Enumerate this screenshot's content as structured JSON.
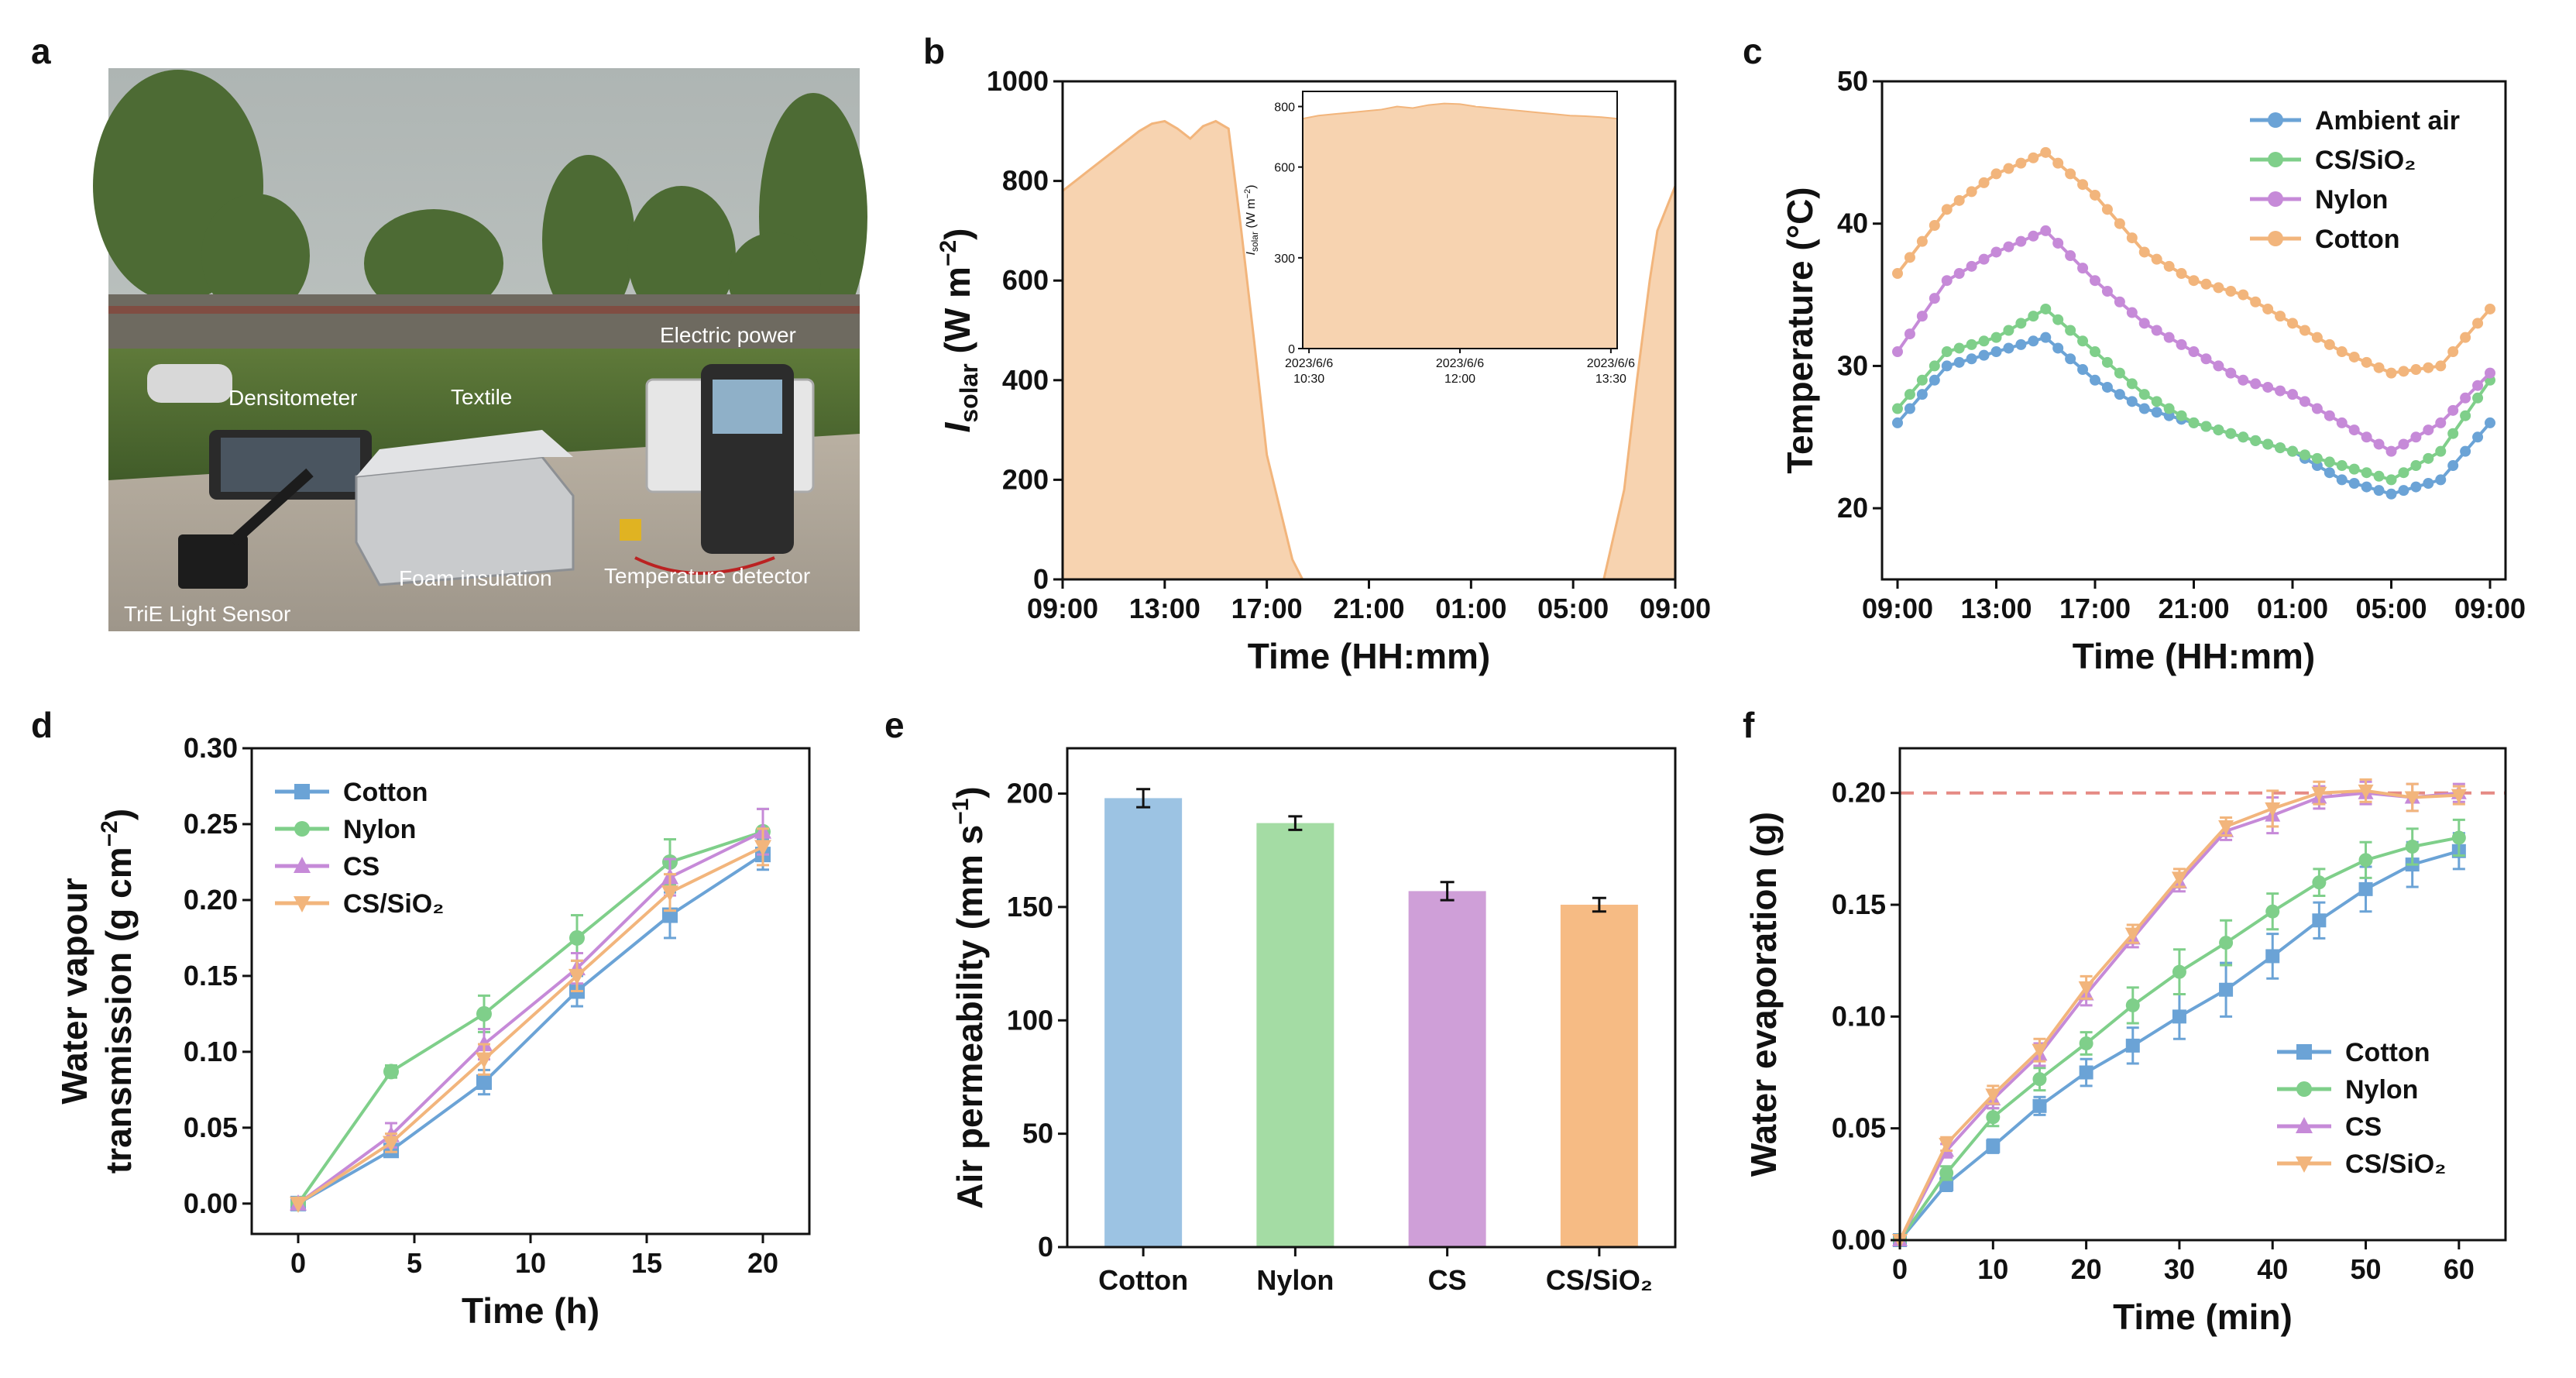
{
  "panels": {
    "a": "a",
    "b": "b",
    "c": "c",
    "d": "d",
    "e": "e",
    "f": "f"
  },
  "photo": {
    "labels": {
      "electric_power": "Electric power",
      "densitometer": "Densitometer",
      "textile": "Textile",
      "foam": "Foam insulation",
      "temp_detector": "Temperature detector",
      "light_sensor": "TriE Light Sensor"
    }
  },
  "colors": {
    "orange": "#f2b57c",
    "orange_fill": "#f7d3b0",
    "blue": "#6ba3d6",
    "green": "#7fcf8a",
    "purple": "#c68ad8",
    "red_dash": "#e58a84",
    "bar_cotton": "#9cc3e3",
    "bar_nylon": "#a4dca4",
    "bar_cs": "#cf9fd8",
    "bar_cssio2": "#f6bb84"
  },
  "chart_data": [
    {
      "id": "b",
      "type": "area",
      "title": "",
      "xlabel": "Time (HH:mm)",
      "ylabel_main": "I",
      "ylabel_sub": "solar",
      "ylabel_unit": " (W m",
      "ylabel_sup": "−2",
      "ylabel_close": ")",
      "ylim": [
        0,
        1000
      ],
      "yticks": [
        0,
        200,
        400,
        600,
        800,
        1000
      ],
      "xticks": [
        "09:00",
        "13:00",
        "17:00",
        "21:00",
        "01:00",
        "05:00",
        "09:00"
      ],
      "x": [
        0,
        1,
        2,
        3,
        3.5,
        4,
        4.5,
        5,
        5.5,
        6,
        6.5,
        7,
        7.5,
        8,
        9,
        9.4,
        10,
        12,
        16,
        20,
        21.2,
        22,
        22.5,
        23,
        23.3,
        24
      ],
      "y": [
        780,
        820,
        860,
        900,
        915,
        920,
        905,
        885,
        910,
        920,
        905,
        700,
        480,
        250,
        40,
        0,
        0,
        0,
        0,
        0,
        0,
        180,
        400,
        600,
        700,
        790
      ],
      "inset": {
        "yticks": [
          0,
          300,
          600,
          800
        ],
        "ylabel": "I",
        "ylabel_sub": "solar",
        "ylabel_unit": " (W m",
        "ylabel_sup": "−2",
        "ylabel_close": ")",
        "ylim": [
          0,
          850
        ],
        "xticks": [
          "2023/6/6 10:30",
          "2023/6/6 12:00",
          "2023/6/6 13:30"
        ],
        "x": [
          0,
          0.05,
          0.1,
          0.15,
          0.2,
          0.25,
          0.3,
          0.35,
          0.4,
          0.45,
          0.5,
          0.55,
          0.6,
          0.65,
          0.7,
          0.75,
          0.8,
          0.85,
          0.9,
          0.95,
          1.0
        ],
        "y": [
          760,
          770,
          775,
          780,
          785,
          790,
          800,
          795,
          805,
          810,
          808,
          800,
          795,
          790,
          785,
          780,
          775,
          770,
          768,
          765,
          760
        ]
      }
    },
    {
      "id": "c",
      "type": "line",
      "xlabel": "Time (HH:mm)",
      "ylabel": "Temperature (°C)",
      "ylim": [
        15,
        50
      ],
      "yticks": [
        20,
        30,
        40,
        50
      ],
      "xticks": [
        "09:00",
        "13:00",
        "17:00",
        "21:00",
        "01:00",
        "05:00",
        "09:00"
      ],
      "x": [
        0,
        2,
        4,
        6,
        8,
        10,
        12,
        14,
        16,
        18,
        20,
        22,
        24
      ],
      "series": [
        {
          "name": "Ambient air",
          "values": [
            26,
            30,
            31,
            32,
            29,
            27,
            26,
            25,
            24,
            22,
            21,
            22,
            26
          ]
        },
        {
          "name": "CS/SiO₂",
          "values": [
            27,
            31,
            32,
            34,
            31,
            28,
            26,
            25,
            24,
            23,
            22,
            24,
            29
          ]
        },
        {
          "name": "Nylon",
          "values": [
            31,
            36,
            38,
            39.5,
            36,
            33,
            31,
            29,
            28,
            26,
            24,
            26,
            29.5
          ]
        },
        {
          "name": "Cotton",
          "values": [
            36.5,
            41,
            43.5,
            45,
            42,
            38,
            36,
            35,
            33,
            31,
            29.5,
            30,
            34
          ]
        }
      ]
    },
    {
      "id": "d",
      "type": "line",
      "xlabel": "Time (h)",
      "ylabel_line1": "Water vapour",
      "ylabel_line2_a": "transmission (g cm",
      "ylabel_line2_sup": "−2",
      "ylabel_line2_b": ")",
      "ylim": [
        -0.02,
        0.3
      ],
      "yticks": [
        0.0,
        0.05,
        0.1,
        0.15,
        0.2,
        0.25,
        0.3
      ],
      "ytick_labels": [
        "0.00",
        "0.05",
        "0.10",
        "0.15",
        "0.20",
        "0.25",
        "0.30"
      ],
      "xlim": [
        -2,
        22
      ],
      "xticks": [
        0,
        5,
        10,
        15,
        20
      ],
      "x": [
        0,
        4,
        8,
        12,
        16,
        20
      ],
      "series": [
        {
          "name": "Cotton",
          "values": [
            0,
            0.035,
            0.08,
            0.14,
            0.19,
            0.23
          ],
          "err": [
            0,
            0.004,
            0.008,
            0.01,
            0.015,
            0.01
          ]
        },
        {
          "name": "Nylon",
          "values": [
            0,
            0.087,
            0.125,
            0.175,
            0.225,
            0.245
          ],
          "err": [
            0,
            0.004,
            0.012,
            0.015,
            0.015,
            0.015
          ]
        },
        {
          "name": "CS",
          "values": [
            0,
            0.045,
            0.105,
            0.155,
            0.215,
            0.245
          ],
          "err": [
            0,
            0.008,
            0.01,
            0.01,
            0.012,
            0.015
          ]
        },
        {
          "name": "CS/SiO₂",
          "values": [
            0,
            0.04,
            0.095,
            0.15,
            0.205,
            0.235
          ],
          "err": [
            0,
            0.006,
            0.01,
            0.01,
            0.012,
            0.012
          ]
        }
      ]
    },
    {
      "id": "e",
      "type": "bar",
      "xlabel": "",
      "ylabel_a": "Air permeability (mm s",
      "ylabel_sup": "−1",
      "ylabel_b": ")",
      "ylim": [
        0,
        220
      ],
      "yticks": [
        0,
        50,
        100,
        150,
        200
      ],
      "categories": [
        "Cotton",
        "Nylon",
        "CS",
        "CS/SiO₂"
      ],
      "values": [
        198,
        187,
        157,
        151
      ],
      "err": [
        4,
        3,
        4,
        3
      ]
    },
    {
      "id": "f",
      "type": "line",
      "xlabel": "Time (min)",
      "ylabel": "Water evaporation (g)",
      "ylim": [
        0,
        0.22
      ],
      "yticks": [
        0.0,
        0.05,
        0.1,
        0.15,
        0.2
      ],
      "ytick_labels": [
        "0.00",
        "0.05",
        "0.10",
        "0.15",
        "0.20"
      ],
      "xlim": [
        0,
        65
      ],
      "xticks": [
        0,
        10,
        20,
        30,
        40,
        50,
        60
      ],
      "x": [
        0,
        5,
        10,
        15,
        20,
        25,
        30,
        35,
        40,
        45,
        50,
        55,
        60
      ],
      "reference_line": 0.2,
      "series": [
        {
          "name": "Cotton",
          "values": [
            0,
            0.025,
            0.042,
            0.06,
            0.075,
            0.087,
            0.1,
            0.112,
            0.127,
            0.143,
            0.157,
            0.168,
            0.174
          ],
          "err": [
            0,
            0.003,
            0.003,
            0.004,
            0.006,
            0.008,
            0.01,
            0.012,
            0.01,
            0.008,
            0.01,
            0.01,
            0.008
          ]
        },
        {
          "name": "Nylon",
          "values": [
            0,
            0.03,
            0.055,
            0.072,
            0.088,
            0.105,
            0.12,
            0.133,
            0.147,
            0.16,
            0.17,
            0.176,
            0.18
          ],
          "err": [
            0,
            0.003,
            0.004,
            0.005,
            0.005,
            0.008,
            0.01,
            0.01,
            0.008,
            0.006,
            0.008,
            0.008,
            0.008
          ]
        },
        {
          "name": "CS",
          "values": [
            0,
            0.04,
            0.063,
            0.083,
            0.11,
            0.135,
            0.16,
            0.183,
            0.19,
            0.198,
            0.2,
            0.198,
            0.2
          ],
          "err": [
            0,
            0.003,
            0.004,
            0.005,
            0.005,
            0.004,
            0.004,
            0.004,
            0.008,
            0.005,
            0.005,
            0.006,
            0.004
          ]
        },
        {
          "name": "CS/SiO₂",
          "values": [
            0,
            0.043,
            0.065,
            0.085,
            0.113,
            0.137,
            0.162,
            0.185,
            0.193,
            0.2,
            0.201,
            0.198,
            0.199
          ],
          "err": [
            0,
            0.003,
            0.004,
            0.005,
            0.005,
            0.004,
            0.004,
            0.004,
            0.008,
            0.005,
            0.005,
            0.006,
            0.004
          ]
        }
      ]
    }
  ]
}
